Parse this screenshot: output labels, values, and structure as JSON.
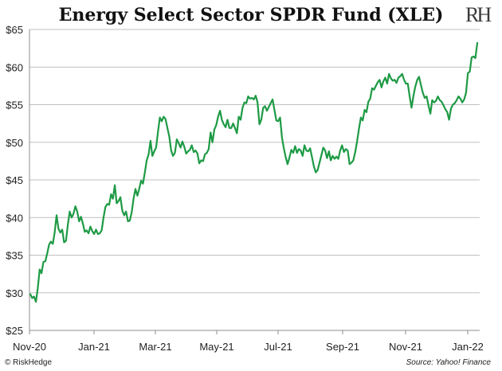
{
  "chart_data": {
    "type": "line",
    "title": "Energy Select Sector SPDR Fund (XLE)",
    "xlabel": "",
    "ylabel": "",
    "ylim": [
      25,
      65
    ],
    "y_ticks": [
      "$25",
      "$30",
      "$35",
      "$40",
      "$45",
      "$50",
      "$55",
      "$60",
      "$65"
    ],
    "x_ticks": [
      "Nov-20",
      "Jan-21",
      "Mar-21",
      "May-21",
      "Jul-21",
      "Sep-21",
      "Nov-21",
      "Jan-22"
    ],
    "grid": "horizontal",
    "legend": "none",
    "line_color": "#1e9a45",
    "series": [
      {
        "values": [
          29.8,
          29.3,
          29.5,
          28.8,
          30.6,
          33.1,
          32.6,
          34.1,
          34.2,
          35.2,
          36.4,
          36.8,
          36.5,
          38.0,
          40.3,
          38.5,
          38.0,
          38.4,
          36.7,
          36.9,
          39.0,
          40.8,
          40.0,
          40.5,
          41.5,
          40.8,
          39.5,
          40.1,
          39.2,
          38.1,
          38.3,
          37.9,
          38.8,
          38.2,
          37.8,
          38.4,
          37.8,
          37.9,
          38.3,
          40.0,
          41.4,
          41.8,
          41.7,
          43.1,
          42.5,
          44.3,
          41.9,
          42.2,
          42.7,
          40.9,
          40.3,
          40.8,
          39.5,
          39.6,
          40.7,
          42.5,
          43.8,
          42.9,
          43.8,
          44.9,
          44.5,
          46.0,
          47.6,
          48.4,
          50.2,
          48.2,
          48.8,
          49.3,
          51.4,
          53.3,
          52.8,
          53.4,
          53.1,
          51.9,
          50.8,
          48.9,
          48.2,
          48.6,
          50.4,
          49.9,
          49.3,
          50.1,
          49.4,
          48.5,
          48.8,
          49.0,
          49.6,
          48.7,
          48.9,
          48.5,
          47.2,
          47.6,
          47.5,
          48.4,
          48.6,
          49.1,
          51.3,
          50.0,
          51.7,
          52.3,
          53.4,
          54.2,
          53.0,
          52.4,
          52.0,
          53.0,
          51.9,
          51.9,
          52.5,
          51.9,
          51.2,
          53.4,
          53.0,
          54.6,
          55.3,
          55.2,
          56.1,
          55.8,
          55.9,
          55.7,
          56.2,
          55.3,
          52.4,
          53.0,
          54.6,
          54.8,
          54.2,
          54.7,
          55.2,
          55.7,
          54.3,
          52.9,
          52.8,
          53.3,
          50.6,
          49.2,
          48.0,
          47.1,
          48.0,
          49.0,
          48.6,
          49.5,
          48.6,
          49.1,
          48.9,
          48.2,
          49.6,
          48.9,
          48.8,
          49.2,
          48.0,
          46.8,
          46.0,
          46.3,
          47.3,
          48.3,
          49.3,
          48.9,
          47.9,
          48.8,
          47.6,
          48.2,
          47.8,
          48.1,
          47.8,
          48.9,
          49.6,
          48.7,
          49.1,
          48.9,
          47.1,
          47.3,
          47.6,
          48.7,
          50.1,
          51.8,
          53.3,
          52.9,
          54.3,
          54.0,
          55.4,
          55.8,
          57.2,
          57.0,
          57.5,
          58.0,
          58.3,
          57.3,
          58.1,
          58.6,
          57.8,
          59.1,
          58.5,
          58.2,
          58.3,
          57.9,
          58.6,
          58.8,
          59.1,
          58.3,
          57.8,
          57.8,
          56.1,
          54.6,
          56.2,
          57.4,
          58.3,
          58.7,
          57.6,
          56.6,
          55.9,
          56.1,
          54.9,
          53.8,
          55.6,
          55.3,
          55.5,
          56.1,
          55.6,
          55.4,
          54.9,
          54.4,
          54.0,
          53.0,
          54.5,
          55.0,
          55.2,
          55.6,
          56.1,
          55.8,
          55.3,
          55.7,
          56.6,
          59.2,
          59.4,
          61.3,
          61.4,
          61.2,
          63.2
        ],
        "x_start": 0.0,
        "x_step": 0.0305
      }
    ],
    "footer_left": "© RiskHedge",
    "footer_right": "Source: Yahoo! Finance",
    "logo_text": "RH"
  }
}
